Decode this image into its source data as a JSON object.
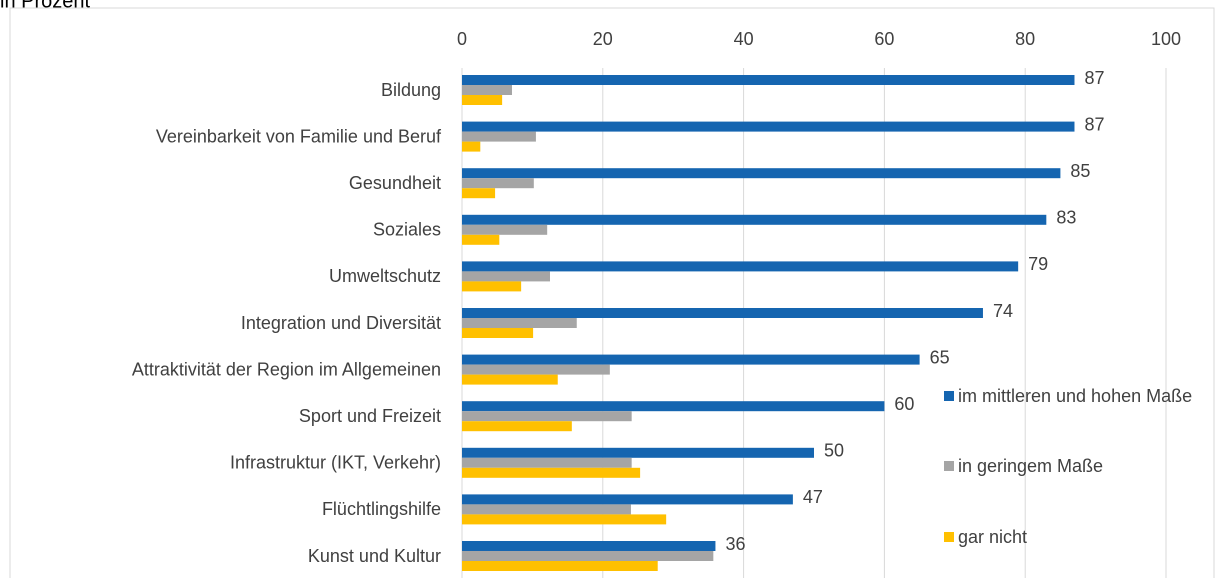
{
  "chart_data": {
    "type": "bar",
    "orientation": "horizontal",
    "subtitle": "in Prozent",
    "categories": [
      "Bildung",
      "Vereinbarkeit von Familie und Beruf",
      "Gesundheit",
      "Soziales",
      "Umweltschutz",
      "Integration und Diversität",
      "Attraktivität der Region im Allgemeinen",
      "Sport und Freizeit",
      "Infrastruktur (IKT, Verkehr)",
      "Flüchtlingshilfe",
      "Kunst und Kultur"
    ],
    "series": [
      {
        "name": "im mittleren und hohen Maße",
        "color": "#1565b0",
        "values": [
          87,
          87,
          85,
          83,
          79,
          74,
          65,
          60,
          50,
          47,
          36
        ],
        "show_labels": true
      },
      {
        "name": "in geringem Maße",
        "color": "#a5a5a5",
        "values": [
          7.1,
          10.5,
          10.2,
          12.1,
          12.5,
          16.3,
          21,
          24.1,
          24.1,
          24,
          35.7
        ]
      },
      {
        "name": "gar nicht",
        "color": "#ffc000",
        "values": [
          5.7,
          2.6,
          4.7,
          5.3,
          8.4,
          10.1,
          13.6,
          15.6,
          25.3,
          29,
          27.8
        ]
      }
    ],
    "xlim": [
      0,
      100
    ],
    "xticks": [
      0,
      20,
      40,
      60,
      80,
      100
    ],
    "grid": true,
    "legend": "right"
  }
}
